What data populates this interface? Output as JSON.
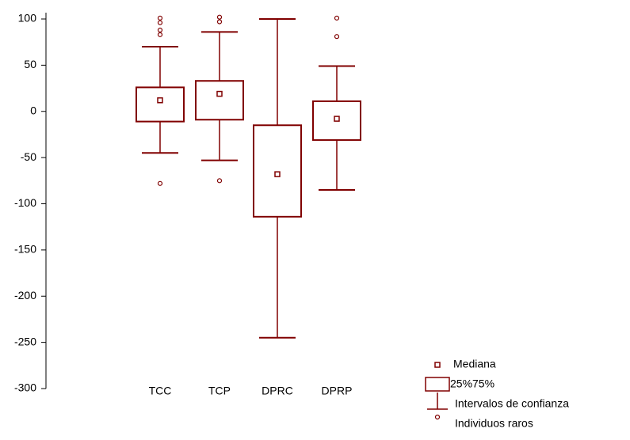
{
  "chart_data": {
    "type": "box",
    "categories": [
      "TCC",
      "TCP",
      "DPRC",
      "DPRP"
    ],
    "boxes": [
      {
        "median": 12,
        "q1": -11,
        "q3": 26,
        "whisker_low": -45,
        "whisker_high": 70,
        "outliers": [
          101,
          96,
          88,
          83,
          -78
        ]
      },
      {
        "median": 19,
        "q1": -9,
        "q3": 33,
        "whisker_low": -53,
        "whisker_high": 86,
        "outliers": [
          102,
          97,
          -75
        ]
      },
      {
        "median": -68,
        "q1": -114,
        "q3": -15,
        "whisker_low": -245,
        "whisker_high": 100,
        "outliers": []
      },
      {
        "median": -8,
        "q1": -31,
        "q3": 11,
        "whisker_low": -85,
        "whisker_high": 49,
        "outliers": [
          101,
          81
        ]
      }
    ],
    "color": "#800000",
    "ylim": [
      -300,
      100
    ],
    "yticks": [
      -300,
      -250,
      -200,
      -150,
      -100,
      -50,
      0,
      50,
      100
    ],
    "legend": {
      "median": "Mediana",
      "box": "25%75%",
      "whisker": "Intervalos de confianza",
      "outlier": "Individuos raros"
    },
    "legend_position": "lower right"
  }
}
